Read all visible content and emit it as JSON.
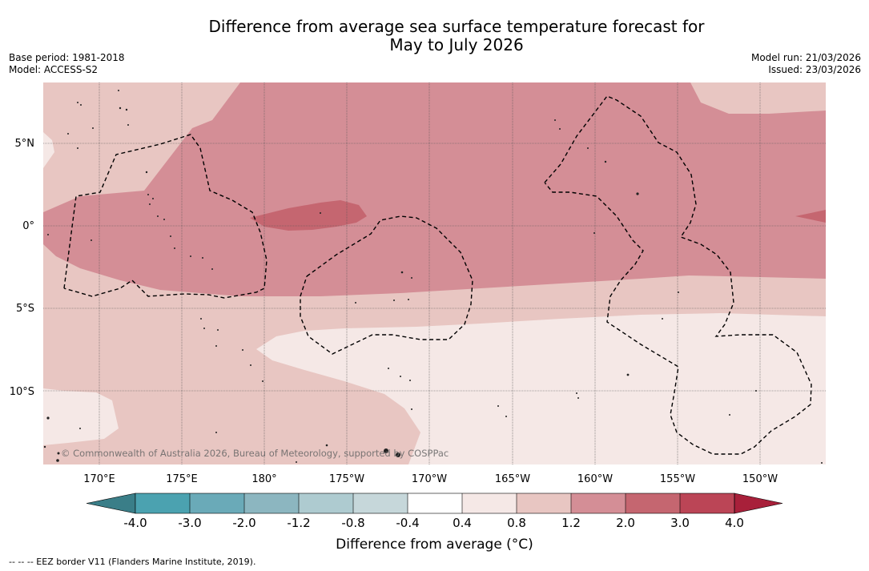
{
  "header": {
    "title_line1": "Difference from average sea surface temperature forecast for",
    "title_line2": "May to July 2026",
    "base_period": "Base period: 1981-2018",
    "model": "Model: ACCESS-S2",
    "model_run": "Model run: 21/03/2026",
    "issued": "Issued: 23/03/2026"
  },
  "map": {
    "lat_labels": [
      "5°N",
      "0°",
      "5°S",
      "10°S"
    ],
    "lon_labels": [
      "170°E",
      "175°E",
      "180°",
      "175°W",
      "170°W",
      "165°W",
      "160°W",
      "155°W",
      "150°W"
    ],
    "copyright": "© Commonwealth of Australia 2026, Bureau of Meteorology, supported by COSPPac",
    "field_colors": {
      "band_04_08": "#f5e8e6",
      "band_08_12": "#e8c6c2",
      "band_12_20": "#d48e96",
      "band_20_30": "#c56670"
    }
  },
  "colorbar": {
    "label": "Difference from average (°C)",
    "ticks": [
      "-4.0",
      "-3.0",
      "-2.0",
      "-1.2",
      "-0.8",
      "-0.4",
      "0.4",
      "0.8",
      "1.2",
      "2.0",
      "3.0",
      "4.0"
    ],
    "colors": [
      "#3a7e88",
      "#4ba2b0",
      "#6aaab8",
      "#8cb6c0",
      "#aecbd0",
      "#c6d7da",
      "#ffffff",
      "#f5e8e6",
      "#e8c6c2",
      "#d48e96",
      "#c56670",
      "#bb4556",
      "#a8203a"
    ]
  },
  "legend": {
    "eez_note": "--  --  -- EEZ border V11 (Flanders Marine Institute, 2019)."
  }
}
